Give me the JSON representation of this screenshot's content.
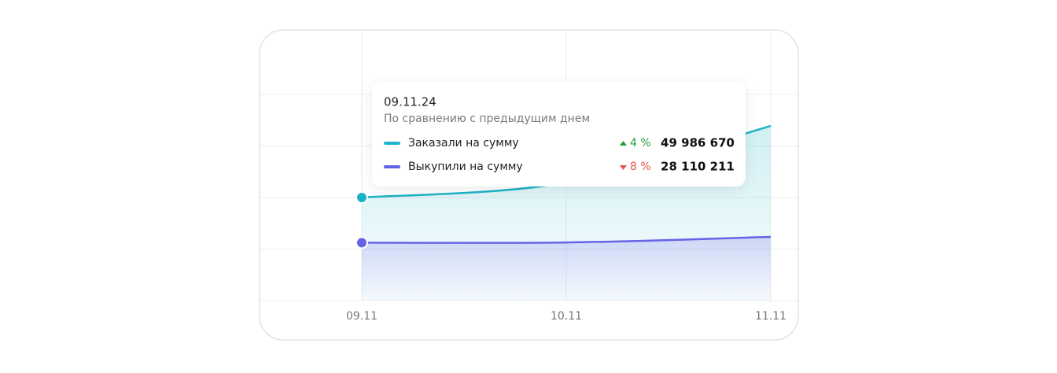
{
  "chart_data": {
    "type": "area",
    "categories": [
      "09.11",
      "10.11",
      "11.11"
    ],
    "ylim": [
      0,
      100000000
    ],
    "yticks": [
      0,
      25000000,
      50000000,
      75000000,
      100000000
    ],
    "grid": true,
    "series": [
      {
        "name": "Заказали на сумму",
        "color": "#1bb3c7",
        "values": [
          49986670,
          57200000,
          84700000
        ],
        "value_labels": [
          "49 986 670",
          null,
          null
        ]
      },
      {
        "name": "Выкупили на сумму",
        "color": "#6563e6",
        "values": [
          28110211,
          28200000,
          30900000
        ],
        "value_labels": [
          "28 110 211",
          null,
          null
        ]
      }
    ],
    "tooltip": {
      "date": "09.11.24",
      "subtitle": "По сравнению с предыдущим днем",
      "changes": [
        "4 %",
        "8 %"
      ]
    }
  }
}
